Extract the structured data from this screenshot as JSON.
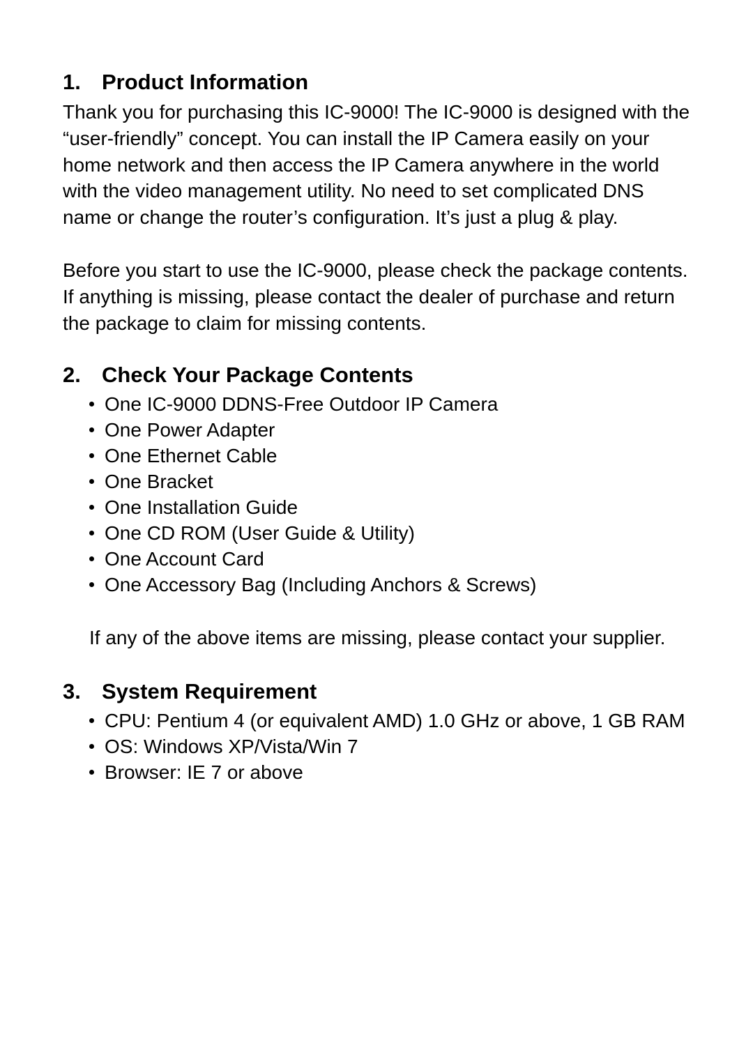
{
  "typography": {
    "heading_fontsize": 31,
    "body_fontsize": 28,
    "heading_weight": "bold",
    "font_family": "Arial, Helvetica, sans-serif"
  },
  "colors": {
    "text": "#000000",
    "background": "#ffffff"
  },
  "section1": {
    "number": "1.",
    "title": "Product Information",
    "paragraph1": "Thank you for purchasing this IC-9000! The IC-9000 is designed with the “user-friendly” concept. You can install the IP Camera easily on your home network and then access the IP Camera anywhere in the world with the video management utility. No need to set complicated DNS name or change the router’s configuration. It’s just a plug & play.",
    "paragraph2": "Before you start to use the IC-9000, please check the package contents. If anything is missing, please contact the dealer of purchase and return the package to claim for missing contents."
  },
  "section2": {
    "number": "2.",
    "title": "Check Your Package Contents",
    "items": [
      "One IC-9000 DDNS-Free Outdoor IP Camera",
      "One Power Adapter",
      "One Ethernet Cable",
      "One Bracket",
      "One Installation Guide",
      "One CD ROM (User Guide & Utility)",
      "One Account Card",
      "One Accessory Bag (Including Anchors & Screws)"
    ],
    "footer": "If any of the above items are missing, please contact your supplier."
  },
  "section3": {
    "number": "3.",
    "title": "System Requirement",
    "items": [
      "CPU: Pentium 4 (or equivalent AMD) 1.0 GHz or above, 1 GB RAM",
      "OS: Windows XP/Vista/Win 7",
      "Browser: IE 7 or above"
    ]
  }
}
